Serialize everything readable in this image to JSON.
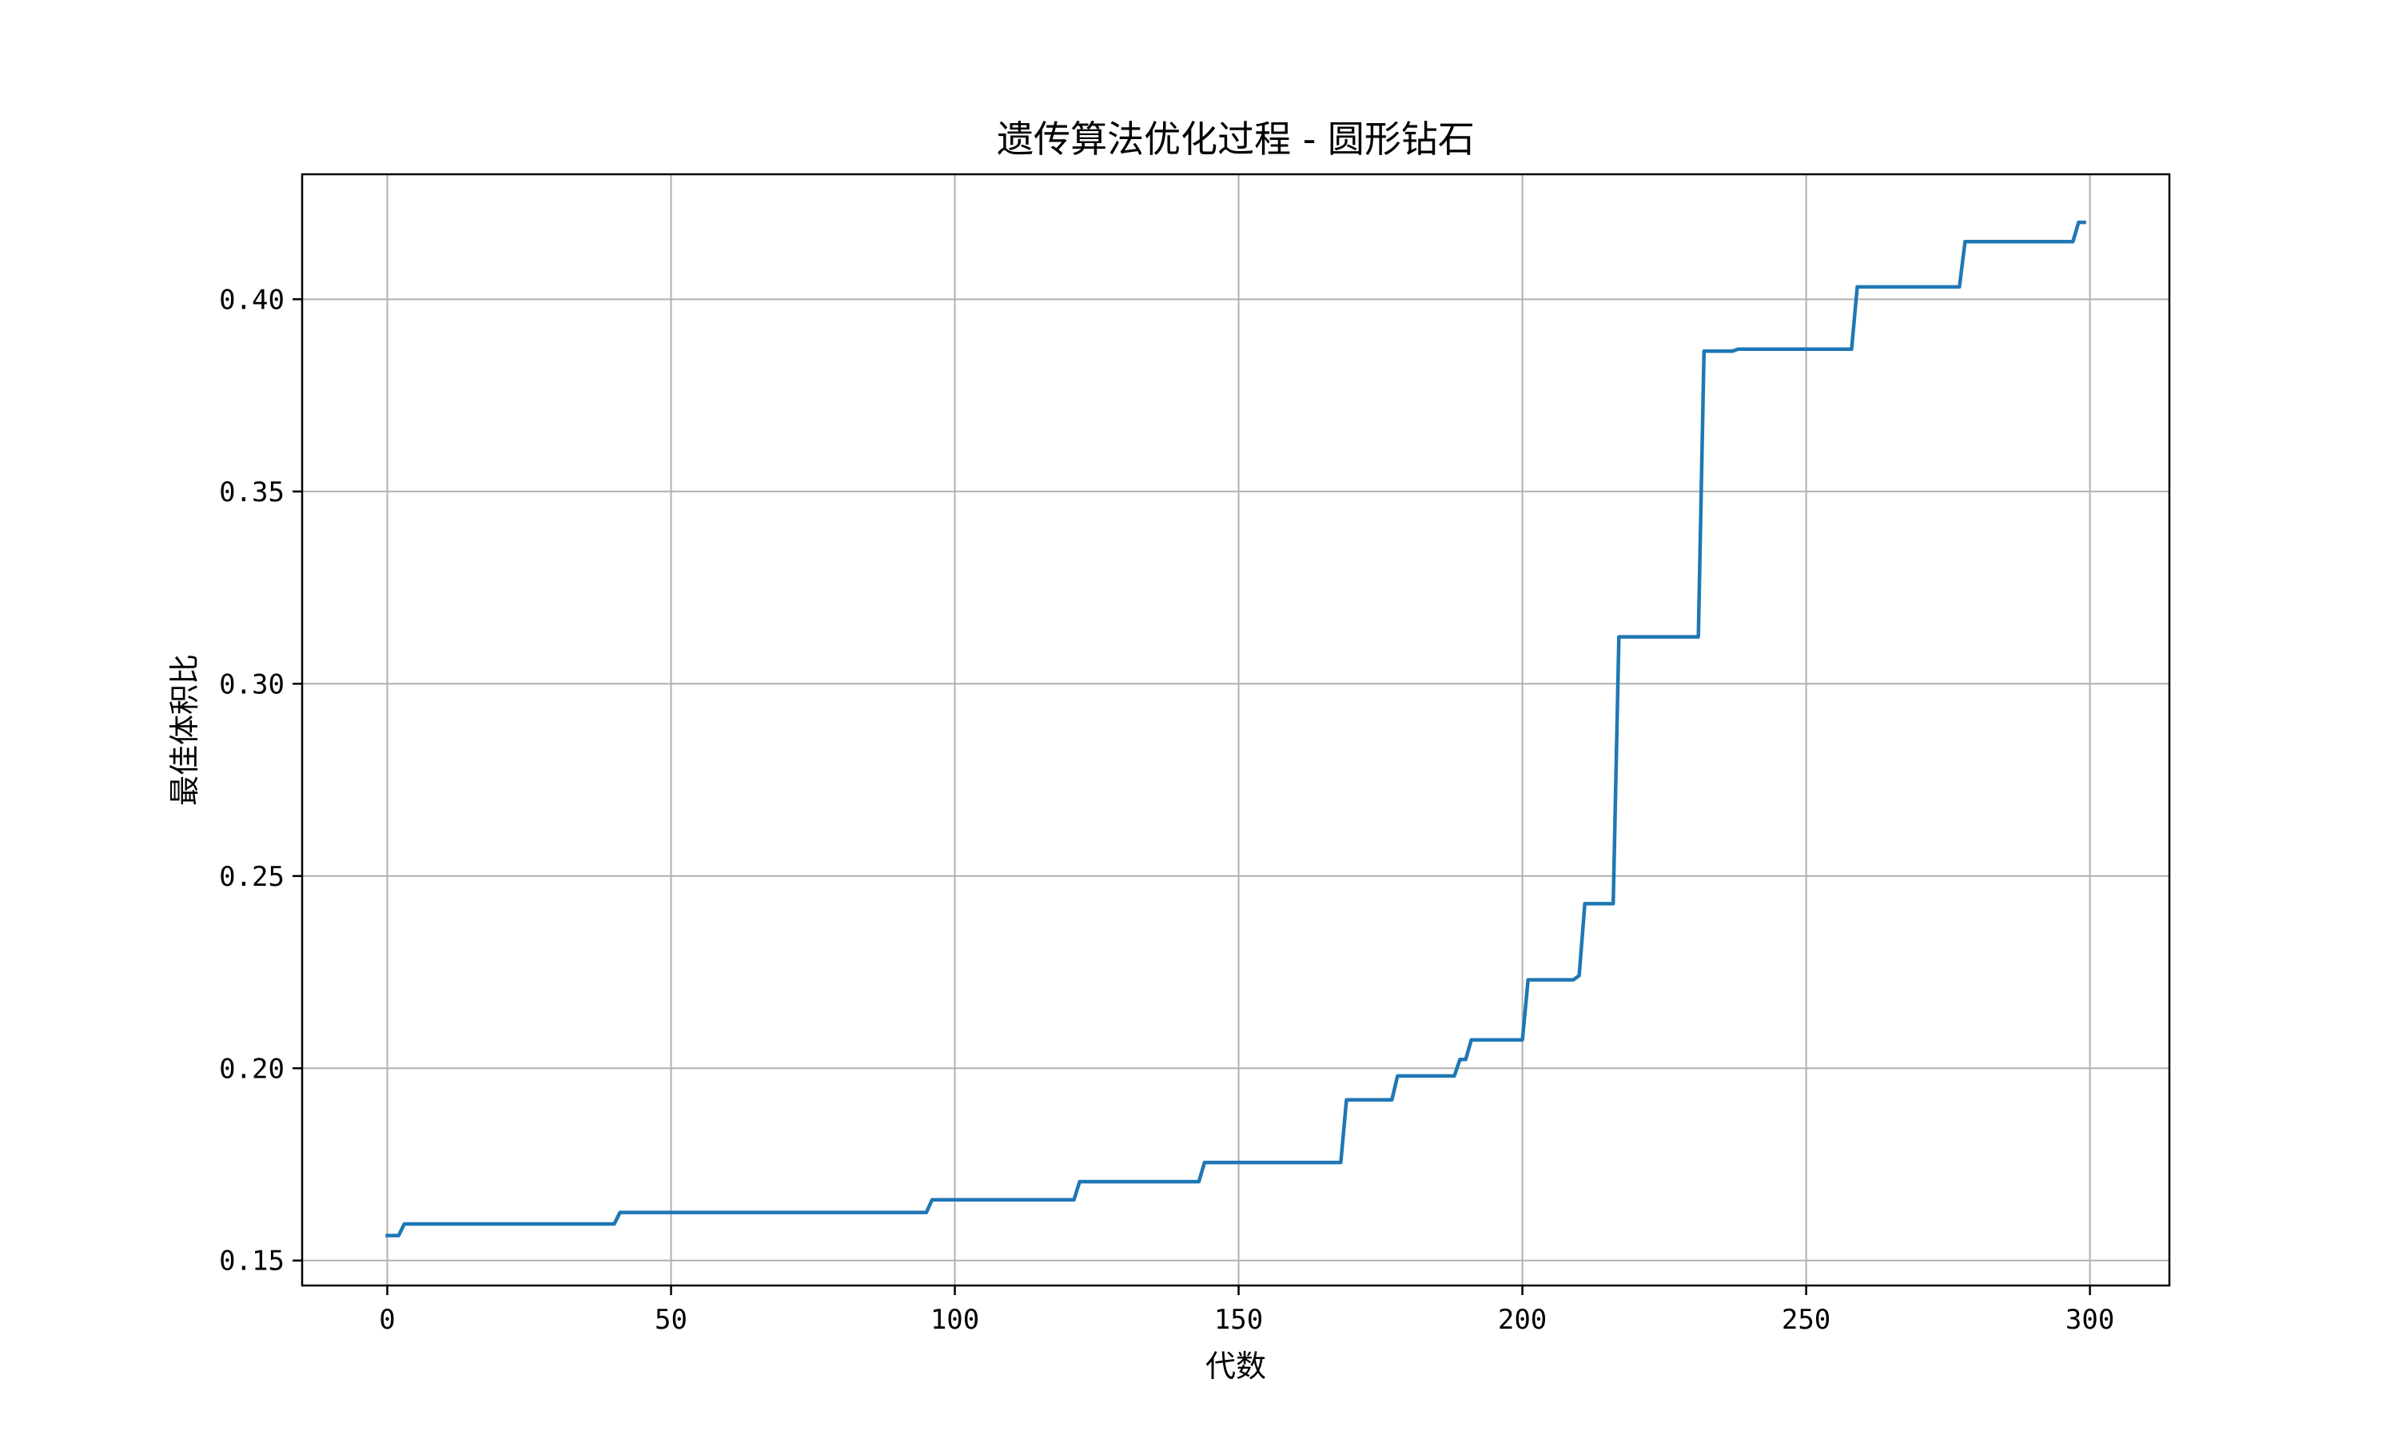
{
  "chart_data": {
    "type": "line",
    "title": "遗传算法优化过程 - 圆形钻石",
    "xlabel": "代数",
    "ylabel": "最佳体积比",
    "xlim": [
      -15,
      314
    ],
    "ylim": [
      0.1435,
      0.4325
    ],
    "xticks": [
      0,
      50,
      100,
      150,
      200,
      250,
      300
    ],
    "xtick_labels": [
      "0",
      "50",
      "100",
      "150",
      "200",
      "250",
      "300"
    ],
    "yticks": [
      0.15,
      0.2,
      0.25,
      0.3,
      0.35,
      0.4
    ],
    "ytick_labels": [
      "0.15",
      "0.20",
      "0.25",
      "0.30",
      "0.35",
      "0.40"
    ],
    "grid": true,
    "line_color": "#1f77b4",
    "series": [
      {
        "x": [
          0,
          2,
          3,
          40,
          41,
          95,
          96,
          121,
          122,
          143,
          144,
          168,
          169,
          177,
          178,
          188,
          189,
          190,
          191,
          200,
          201,
          209,
          210,
          211,
          216,
          217,
          231,
          232,
          237,
          238,
          258,
          259,
          277,
          278,
          297,
          298,
          299
        ],
        "y": [
          0.1565,
          0.1565,
          0.1595,
          0.1595,
          0.1625,
          0.1625,
          0.1658,
          0.1658,
          0.1705,
          0.1705,
          0.1755,
          0.1755,
          0.1918,
          0.1918,
          0.198,
          0.198,
          0.2023,
          0.2023,
          0.2074,
          0.2074,
          0.223,
          0.223,
          0.2241,
          0.2428,
          0.2428,
          0.3122,
          0.3122,
          0.3865,
          0.3865,
          0.387,
          0.387,
          0.4032,
          0.4032,
          0.415,
          0.415,
          0.42,
          0.42
        ]
      }
    ]
  }
}
